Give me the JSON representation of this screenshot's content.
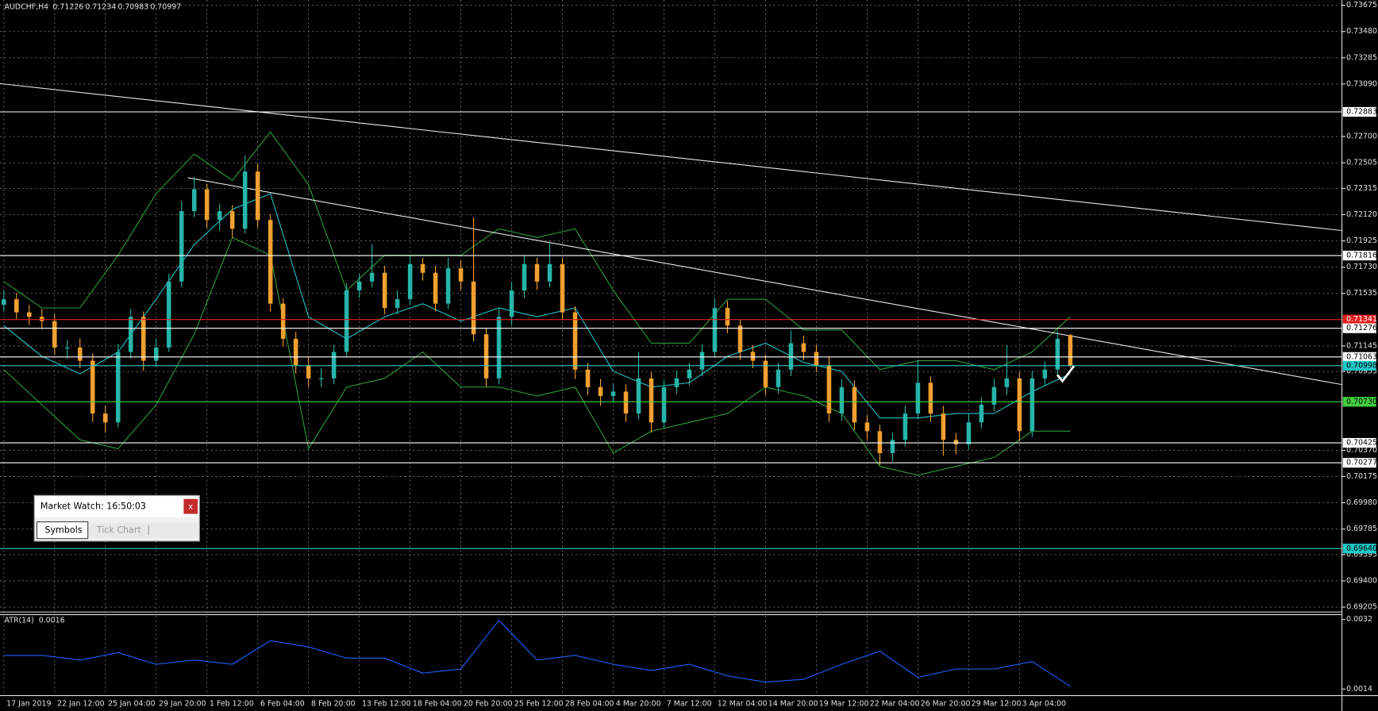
{
  "chart_data": [
    {
      "type": "candlestick",
      "symbol": "AUDCHF,H4",
      "xlim": [
        -0.3,
        105.4
      ],
      "ylim": [
        0.69172,
        0.73714
      ],
      "grid": true,
      "up_color": "#26b5a8",
      "down_color": "#f0a030",
      "xticks": [
        {
          "value": 0,
          "label": "17 Jan 2019"
        },
        {
          "value": 4,
          "label": "22 Jan 12:00"
        },
        {
          "value": 8,
          "label": "25 Jan 04:00"
        },
        {
          "value": 12,
          "label": "29 Jan 20:00"
        },
        {
          "value": 16,
          "label": "1 Feb 12:00"
        },
        {
          "value": 20,
          "label": "6 Feb 04:00"
        },
        {
          "value": 24,
          "label": "8 Feb 20:00"
        },
        {
          "value": 28,
          "label": "13 Feb 12:00"
        },
        {
          "value": 32,
          "label": "18 Feb 04:00"
        },
        {
          "value": 36,
          "label": "20 Feb 20:00"
        },
        {
          "value": 40,
          "label": "25 Feb 12:00"
        },
        {
          "value": 44,
          "label": "28 Feb 04:00"
        },
        {
          "value": 48,
          "label": "4 Mar 20:00"
        },
        {
          "value": 52,
          "label": "7 Mar 12:00"
        },
        {
          "value": 56,
          "label": "12 Mar 04:00"
        },
        {
          "value": 60,
          "label": "14 Mar 20:00"
        },
        {
          "value": 64,
          "label": "19 Mar 12:00"
        },
        {
          "value": 68,
          "label": "22 Mar 04:00"
        },
        {
          "value": 72,
          "label": "26 Mar 20:00"
        },
        {
          "value": 76,
          "label": "29 Mar 12:00"
        },
        {
          "value": 80,
          "label": "3 Apr 04:00"
        }
      ],
      "yticks": [
        {
          "value": 0.73675,
          "label": "0.73675"
        },
        {
          "value": 0.7348,
          "label": "0.73480"
        },
        {
          "value": 0.73285,
          "label": "0.73285"
        },
        {
          "value": 0.7309,
          "label": "0.73090"
        },
        {
          "value": 0.727,
          "label": "0.72700"
        },
        {
          "value": 0.72505,
          "label": "0.72505"
        },
        {
          "value": 0.72315,
          "label": "0.72315"
        },
        {
          "value": 0.7212,
          "label": "0.72120"
        },
        {
          "value": 0.71925,
          "label": "0.71925"
        },
        {
          "value": 0.7173,
          "label": "0.71730"
        },
        {
          "value": 0.71535,
          "label": "0.71535"
        },
        {
          "value": 0.71145,
          "label": "0.71145"
        },
        {
          "value": 0.70955,
          "label": "0.70955"
        },
        {
          "value": 0.7037,
          "label": "0.70370"
        },
        {
          "value": 0.70175,
          "label": "0.70175"
        },
        {
          "value": 0.6998,
          "label": "0.69980"
        },
        {
          "value": 0.69785,
          "label": "0.69785"
        },
        {
          "value": 0.69595,
          "label": "0.69595"
        },
        {
          "value": 0.694,
          "label": "0.69400"
        },
        {
          "value": 0.69205,
          "label": "0.69205"
        }
      ],
      "levels": [
        {
          "value": 0.72883,
          "label": "0.72883",
          "color": "#ffffff"
        },
        {
          "value": 0.71816,
          "label": "0.71816",
          "color": "#ffffff"
        },
        {
          "value": 0.71341,
          "label": "0.71341",
          "color": "#e02020"
        },
        {
          "value": 0.71276,
          "label": "0.71276",
          "color": "#ffffff"
        },
        {
          "value": 0.71063,
          "label": "0.71063",
          "color": "#ffffff"
        },
        {
          "value": 0.70998,
          "label": "0.70998",
          "color": "#20c8c8"
        },
        {
          "value": 0.7073,
          "label": "0.70730",
          "color": "#40d040"
        },
        {
          "value": 0.70425,
          "label": "0.70425",
          "color": "#ffffff"
        },
        {
          "value": 0.70277,
          "label": "0.70277",
          "color": "#ffffff"
        },
        {
          "value": 0.6964,
          "label": "0.69640",
          "color": "#20c8c8"
        }
      ],
      "trendlines": [
        {
          "x": [
            -0.3,
            105.4
          ],
          "y": [
            0.73093,
            0.72002
          ]
        },
        {
          "x": [
            14.5,
            105.4
          ],
          "y": [
            0.72394,
            0.70858
          ]
        }
      ],
      "candles": [
        [
          0.7145,
          0.7156,
          0.714,
          0.71492
        ],
        [
          0.71492,
          0.7154,
          0.7134,
          0.71394
        ],
        [
          0.71394,
          0.7145,
          0.713,
          0.71361
        ],
        [
          0.71361,
          0.7142,
          0.7127,
          0.71329
        ],
        [
          0.71329,
          0.7138,
          0.7108,
          0.71133
        ],
        [
          0.71133,
          0.7119,
          0.7105,
          0.71133
        ],
        [
          0.71133,
          0.712,
          0.7098,
          0.71035
        ],
        [
          0.71035,
          0.7109,
          0.7058,
          0.70643
        ],
        [
          0.70643,
          0.707,
          0.705,
          0.70577
        ],
        [
          0.70577,
          0.7116,
          0.7054,
          0.711
        ],
        [
          0.711,
          0.7142,
          0.7105,
          0.71361
        ],
        [
          0.71361,
          0.714,
          0.7096,
          0.71035
        ],
        [
          0.71035,
          0.712,
          0.7099,
          0.71133
        ],
        [
          0.71133,
          0.7168,
          0.711,
          0.71623
        ],
        [
          0.71623,
          0.7222,
          0.7158,
          0.72146
        ],
        [
          0.72146,
          0.724,
          0.721,
          0.72309
        ],
        [
          0.72309,
          0.7235,
          0.7202,
          0.7208
        ],
        [
          0.7208,
          0.722,
          0.72,
          0.72146
        ],
        [
          0.72146,
          0.7219,
          0.7195,
          0.72015
        ],
        [
          0.72015,
          0.7256,
          0.7198,
          0.7244
        ],
        [
          0.7244,
          0.725,
          0.7202,
          0.7208
        ],
        [
          0.7208,
          0.7212,
          0.714,
          0.71459
        ],
        [
          0.71459,
          0.715,
          0.7114,
          0.71198
        ],
        [
          0.71198,
          0.7125,
          0.7094,
          0.71002
        ],
        [
          0.71002,
          0.7106,
          0.7084,
          0.70904
        ],
        [
          0.70904,
          0.7098,
          0.7084,
          0.70904
        ],
        [
          0.70904,
          0.7115,
          0.7086,
          0.711
        ],
        [
          0.711,
          0.7161,
          0.7106,
          0.71557
        ],
        [
          0.71557,
          0.7168,
          0.715,
          0.71623
        ],
        [
          0.71623,
          0.719,
          0.7158,
          0.71688
        ],
        [
          0.71688,
          0.7174,
          0.7138,
          0.71427
        ],
        [
          0.71427,
          0.7156,
          0.7138,
          0.71492
        ],
        [
          0.71492,
          0.7182,
          0.7145,
          0.71753
        ],
        [
          0.71753,
          0.718,
          0.7163,
          0.71688
        ],
        [
          0.71688,
          0.7174,
          0.714,
          0.71459
        ],
        [
          0.71459,
          0.718,
          0.7142,
          0.71721
        ],
        [
          0.71721,
          0.7178,
          0.7156,
          0.71623
        ],
        [
          0.71623,
          0.721,
          0.7118,
          0.71231
        ],
        [
          0.71231,
          0.7128,
          0.7084,
          0.70904
        ],
        [
          0.70904,
          0.7142,
          0.7086,
          0.71361
        ],
        [
          0.71361,
          0.7162,
          0.713,
          0.71557
        ],
        [
          0.71557,
          0.7182,
          0.715,
          0.71753
        ],
        [
          0.71753,
          0.718,
          0.7156,
          0.71623
        ],
        [
          0.71623,
          0.7192,
          0.7158,
          0.71753
        ],
        [
          0.71753,
          0.718,
          0.7134,
          0.71394
        ],
        [
          0.71394,
          0.7144,
          0.709,
          0.70969
        ],
        [
          0.70969,
          0.7102,
          0.7078,
          0.70839
        ],
        [
          0.70839,
          0.709,
          0.707,
          0.70773
        ],
        [
          0.70773,
          0.7086,
          0.7072,
          0.70806
        ],
        [
          0.70806,
          0.7086,
          0.7058,
          0.70643
        ],
        [
          0.70643,
          0.711,
          0.706,
          0.70904
        ],
        [
          0.70904,
          0.7095,
          0.705,
          0.70577
        ],
        [
          0.70577,
          0.7089,
          0.7053,
          0.70839
        ],
        [
          0.70839,
          0.7096,
          0.7079,
          0.70904
        ],
        [
          0.70904,
          0.7102,
          0.7085,
          0.70969
        ],
        [
          0.70969,
          0.7116,
          0.7092,
          0.711
        ],
        [
          0.711,
          0.715,
          0.7106,
          0.71427
        ],
        [
          0.71427,
          0.7148,
          0.7124,
          0.71296
        ],
        [
          0.71296,
          0.7134,
          0.7104,
          0.711
        ],
        [
          0.711,
          0.7115,
          0.7098,
          0.71035
        ],
        [
          0.71035,
          0.7108,
          0.7078,
          0.70839
        ],
        [
          0.70839,
          0.7102,
          0.7079,
          0.70969
        ],
        [
          0.70969,
          0.7126,
          0.7092,
          0.71165
        ],
        [
          0.71165,
          0.7122,
          0.7104,
          0.711
        ],
        [
          0.711,
          0.7115,
          0.7095,
          0.71002
        ],
        [
          0.71002,
          0.7106,
          0.7058,
          0.70643
        ],
        [
          0.70643,
          0.709,
          0.7059,
          0.70839
        ],
        [
          0.70839,
          0.7089,
          0.7052,
          0.70577
        ],
        [
          0.70577,
          0.7063,
          0.7045,
          0.70512
        ],
        [
          0.70512,
          0.7056,
          0.7026,
          0.70349
        ],
        [
          0.70349,
          0.705,
          0.7029,
          0.70447
        ],
        [
          0.70447,
          0.707,
          0.704,
          0.70643
        ],
        [
          0.70643,
          0.7104,
          0.706,
          0.70871
        ],
        [
          0.70871,
          0.7092,
          0.7058,
          0.70643
        ],
        [
          0.70643,
          0.707,
          0.7033,
          0.70447
        ],
        [
          0.70447,
          0.705,
          0.7034,
          0.70414
        ],
        [
          0.70414,
          0.7064,
          0.7038,
          0.70577
        ],
        [
          0.70577,
          0.7076,
          0.7053,
          0.70708
        ],
        [
          0.70708,
          0.709,
          0.7066,
          0.70839
        ],
        [
          0.70839,
          0.7115,
          0.7078,
          0.70904
        ],
        [
          0.70904,
          0.7095,
          0.7044,
          0.70512
        ],
        [
          0.70512,
          0.7096,
          0.7047,
          0.70904
        ],
        [
          0.70904,
          0.7103,
          0.7085,
          0.70969
        ],
        [
          0.70969,
          0.7126,
          0.7092,
          0.71198
        ],
        [
          0.71226,
          0.71234,
          0.70983,
          0.70997
        ]
      ],
      "band_x": [
        0,
        3,
        6,
        9,
        12,
        15,
        18,
        21,
        24,
        27,
        30,
        33,
        36,
        39,
        42,
        45,
        48,
        51,
        54,
        57,
        60,
        63,
        66,
        69,
        72,
        75,
        78,
        81,
        84
      ],
      "series": [
        {
          "color": "#2f9a3a",
          "values": [
            0.71623,
            0.71427,
            0.71427,
            0.71819,
            0.72276,
            0.7257,
            0.72374,
            0.72734,
            0.72342,
            0.71557,
            0.71819,
            0.71819,
            0.71819,
            0.72015,
            0.7195,
            0.72015,
            0.71557,
            0.71165,
            0.71165,
            0.71492,
            0.71492,
            0.71263,
            0.71263,
            0.70969,
            0.71035,
            0.71035,
            0.70969,
            0.711,
            0.71361
          ]
        },
        {
          "color": "#2f9a3a",
          "values": [
            0.70969,
            0.70708,
            0.70447,
            0.70381,
            0.70708,
            0.71231,
            0.7195,
            0.71819,
            0.70381,
            0.70839,
            0.70904,
            0.711,
            0.70839,
            0.70839,
            0.70773,
            0.70839,
            0.70349,
            0.70512,
            0.70577,
            0.70643,
            0.70839,
            0.70773,
            0.70643,
            0.7025,
            0.70185,
            0.7025,
            0.70316,
            0.70512,
            0.70512
          ]
        },
        {
          "color": "#20c0c8",
          "values": [
            0.71296,
            0.71067,
            0.70937,
            0.711,
            0.71492,
            0.71897,
            0.72159,
            0.72276,
            0.71361,
            0.71198,
            0.71361,
            0.71459,
            0.71329,
            0.71427,
            0.71361,
            0.71427,
            0.70956,
            0.70839,
            0.70871,
            0.71067,
            0.71165,
            0.71022,
            0.70956,
            0.7061,
            0.7061,
            0.70643,
            0.70643,
            0.70806,
            0.70937
          ]
        }
      ]
    },
    {
      "type": "line",
      "label": "ATR(14)",
      "current": 0.0016,
      "xlim": [
        -0.3,
        105.4
      ],
      "ylim": [
        0.00124,
        0.003337
      ],
      "yticks": [
        0.0032,
        0.0014
      ],
      "color": "#2060ff",
      "x": [
        0,
        3,
        6,
        9,
        12,
        15,
        18,
        21,
        24,
        27,
        30,
        33,
        36,
        39,
        42,
        45,
        48,
        51,
        54,
        57,
        60,
        63,
        66,
        69,
        72,
        75,
        78,
        81,
        84
      ],
      "values": [
        0.00227,
        0.00227,
        0.00215,
        0.00234,
        0.00204,
        0.00215,
        0.00204,
        0.00265,
        0.00249,
        0.0022,
        0.0022,
        0.00181,
        0.00192,
        0.00318,
        0.00215,
        0.00227,
        0.00204,
        0.00188,
        0.00204,
        0.00174,
        0.00158,
        0.00165,
        0.00204,
        0.00238,
        0.0017,
        0.00192,
        0.00192,
        0.00211,
        0.00147
      ]
    }
  ],
  "market_watch": {
    "title": "Market Watch: 16:50:03",
    "close": "x",
    "tabs": [
      "Symbols",
      "Tick Chart"
    ]
  }
}
